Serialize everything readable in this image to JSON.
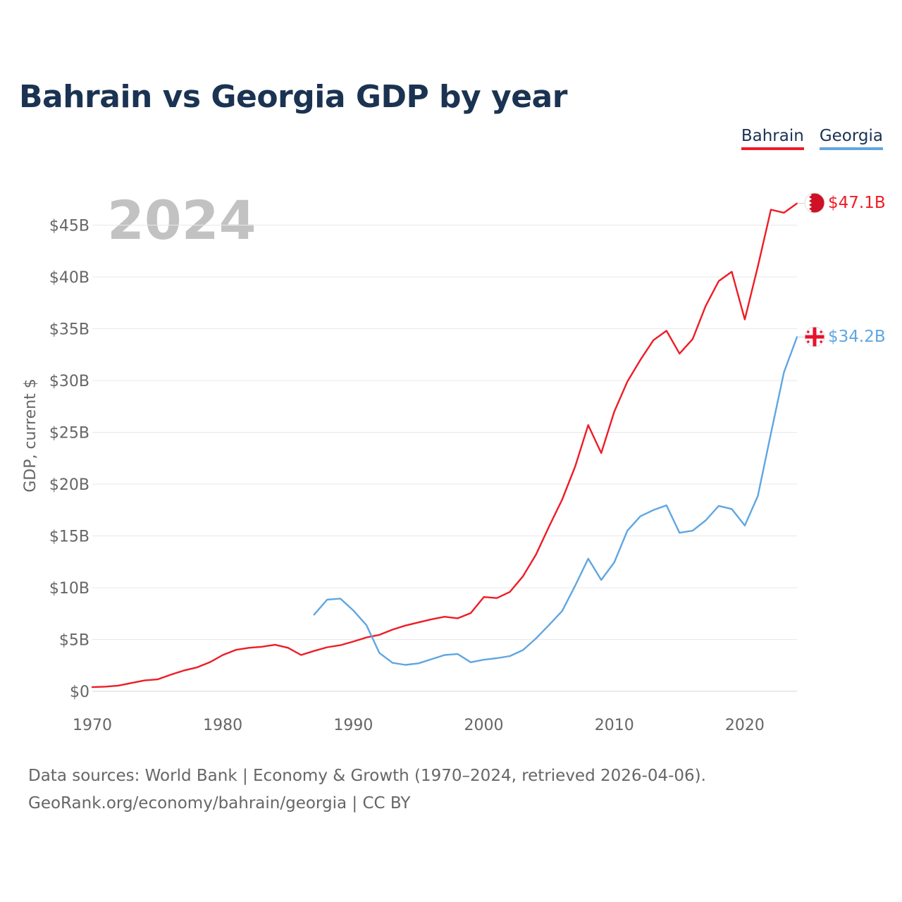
{
  "title": "Bahrain vs Georgia GDP by year",
  "year_label": "2024",
  "legend": [
    {
      "name": "Bahrain",
      "color": "#ee1c25"
    },
    {
      "name": "Georgia",
      "color": "#5fa6e2"
    }
  ],
  "footer": {
    "sources": "Data sources: World Bank | Economy & Growth (1970–2024, retrieved 2026-04-06).",
    "credit": "GeoRank.org/economy/bahrain/georgia | CC BY"
  },
  "chart_data": {
    "type": "line",
    "title": "Bahrain vs Georgia GDP by year",
    "xlabel": "",
    "ylabel": "GDP, current $",
    "xlim": [
      1970,
      2024
    ],
    "ylim": [
      0,
      47.5
    ],
    "x_ticks": [
      1970,
      1980,
      1990,
      2000,
      2010,
      2020
    ],
    "y_ticks": [
      0,
      5,
      10,
      15,
      20,
      25,
      30,
      35,
      40,
      45
    ],
    "y_tick_labels": [
      "$0",
      "$5B",
      "$10B",
      "$15B",
      "$20B",
      "$25B",
      "$30B",
      "$35B",
      "$40B",
      "$45B"
    ],
    "grid": true,
    "series": [
      {
        "name": "Bahrain",
        "color": "#ee1c25",
        "end_label": "$47.1B",
        "x": [
          1970,
          1971,
          1972,
          1973,
          1974,
          1975,
          1976,
          1977,
          1978,
          1979,
          1980,
          1981,
          1982,
          1983,
          1984,
          1985,
          1986,
          1987,
          1988,
          1989,
          1990,
          1991,
          1992,
          1993,
          1994,
          1995,
          1996,
          1997,
          1998,
          1999,
          2000,
          2001,
          2002,
          2003,
          2004,
          2005,
          2006,
          2007,
          2008,
          2009,
          2010,
          2011,
          2012,
          2013,
          2014,
          2015,
          2016,
          2017,
          2018,
          2019,
          2020,
          2021,
          2022,
          2023,
          2024
        ],
        "values": [
          0.4,
          0.45,
          0.55,
          0.8,
          1.05,
          1.15,
          1.6,
          2.0,
          2.3,
          2.8,
          3.5,
          4.0,
          4.2,
          4.3,
          4.5,
          4.2,
          3.5,
          3.9,
          4.25,
          4.45,
          4.8,
          5.2,
          5.45,
          5.95,
          6.35,
          6.65,
          6.95,
          7.2,
          7.05,
          7.55,
          9.1,
          9.0,
          9.6,
          11.1,
          13.2,
          15.9,
          18.5,
          21.7,
          25.7,
          23.0,
          27.0,
          29.9,
          32.0,
          33.9,
          34.8,
          32.6,
          34.0,
          37.2,
          39.6,
          40.5,
          35.9,
          41.0,
          46.5,
          46.2,
          47.1
        ]
      },
      {
        "name": "Georgia",
        "color": "#5fa6e2",
        "end_label": "$34.2B",
        "x": [
          1987,
          1988,
          1989,
          1990,
          1991,
          1992,
          1993,
          1994,
          1995,
          1996,
          1997,
          1998,
          1999,
          2000,
          2001,
          2002,
          2003,
          2004,
          2005,
          2006,
          2007,
          2008,
          2009,
          2010,
          2011,
          2012,
          2013,
          2014,
          2015,
          2016,
          2017,
          2018,
          2019,
          2020,
          2021,
          2022,
          2023,
          2024
        ],
        "values": [
          7.4,
          8.85,
          8.95,
          7.8,
          6.4,
          3.7,
          2.75,
          2.55,
          2.7,
          3.1,
          3.5,
          3.6,
          2.8,
          3.05,
          3.2,
          3.4,
          3.98,
          5.1,
          6.4,
          7.75,
          10.2,
          12.8,
          10.75,
          12.45,
          15.5,
          16.9,
          17.5,
          17.95,
          15.3,
          15.5,
          16.5,
          17.9,
          17.6,
          16.0,
          18.85,
          24.9,
          30.8,
          34.2
        ]
      }
    ]
  }
}
